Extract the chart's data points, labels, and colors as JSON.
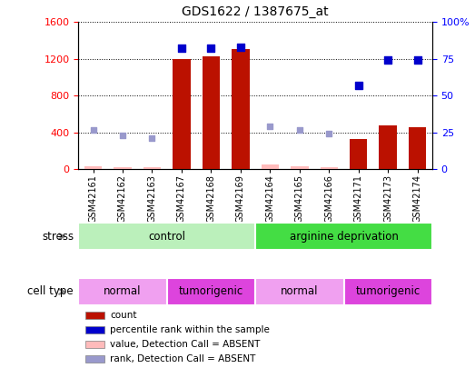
{
  "title": "GDS1622 / 1387675_at",
  "samples": [
    "GSM42161",
    "GSM42162",
    "GSM42163",
    "GSM42167",
    "GSM42168",
    "GSM42169",
    "GSM42164",
    "GSM42165",
    "GSM42166",
    "GSM42171",
    "GSM42173",
    "GSM42174"
  ],
  "count_values": [
    null,
    null,
    null,
    1200,
    1230,
    1310,
    null,
    null,
    null,
    330,
    480,
    460
  ],
  "count_absent": [
    30,
    20,
    20,
    null,
    null,
    null,
    50,
    30,
    20,
    null,
    null,
    null
  ],
  "rank_values": [
    null,
    null,
    null,
    82,
    82,
    83,
    null,
    null,
    null,
    57,
    74,
    74
  ],
  "rank_absent": [
    27,
    23,
    21,
    null,
    null,
    null,
    29,
    27,
    24,
    null,
    null,
    null
  ],
  "left_ylim": [
    0,
    1600
  ],
  "right_ylim": [
    0,
    100
  ],
  "left_yticks": [
    0,
    400,
    800,
    1200,
    1600
  ],
  "right_yticks": [
    0,
    25,
    50,
    75,
    100
  ],
  "right_yticklabels": [
    "0",
    "25",
    "50",
    "75",
    "100%"
  ],
  "stress_groups": [
    {
      "label": "control",
      "start": 0,
      "end": 6,
      "color": "#bbf0bb"
    },
    {
      "label": "arginine deprivation",
      "start": 6,
      "end": 12,
      "color": "#44dd44"
    }
  ],
  "celltype_groups": [
    {
      "label": "normal",
      "start": 0,
      "end": 3,
      "color": "#f0a0f0"
    },
    {
      "label": "tumorigenic",
      "start": 3,
      "end": 6,
      "color": "#dd44dd"
    },
    {
      "label": "normal",
      "start": 6,
      "end": 9,
      "color": "#f0a0f0"
    },
    {
      "label": "tumorigenic",
      "start": 9,
      "end": 12,
      "color": "#dd44dd"
    }
  ],
  "bar_color": "#bb1100",
  "bar_absent_color": "#ffbbbb",
  "rank_color": "#0000cc",
  "rank_absent_color": "#9999cc",
  "legend_items": [
    {
      "label": "count",
      "color": "#bb1100"
    },
    {
      "label": "percentile rank within the sample",
      "color": "#0000cc"
    },
    {
      "label": "value, Detection Call = ABSENT",
      "color": "#ffbbbb"
    },
    {
      "label": "rank, Detection Call = ABSENT",
      "color": "#9999cc"
    }
  ],
  "scale": 16.0,
  "bar_width": 0.6
}
